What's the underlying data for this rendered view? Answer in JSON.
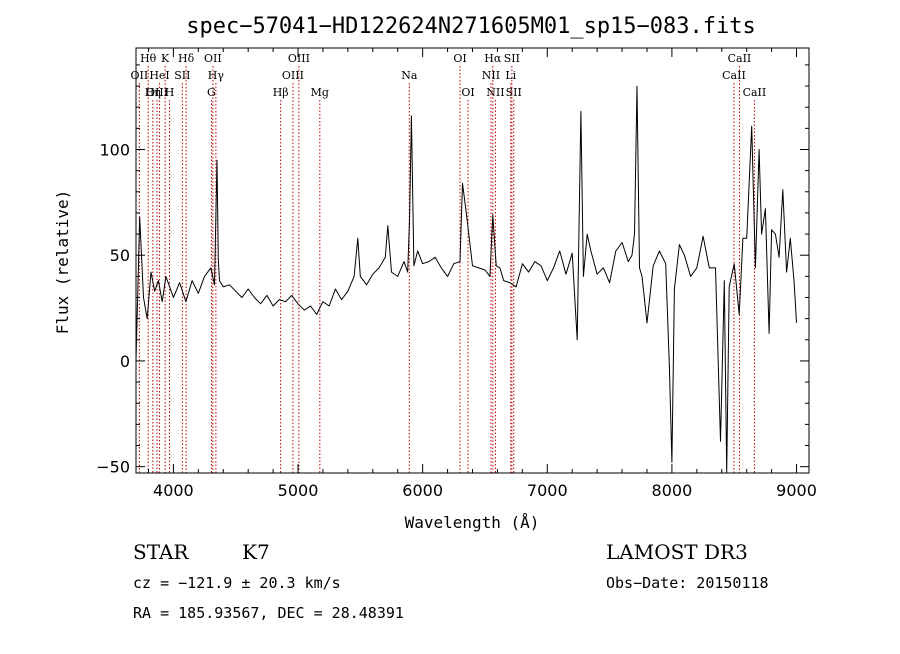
{
  "chart_data": {
    "type": "line",
    "title": "spec−57041−HD122624N271605M01_sp15−083.fits",
    "xlabel": "Wavelength (Å)",
    "ylabel": "Flux (relative)",
    "xlim": [
      3700,
      9100
    ],
    "ylim": [
      -53,
      148
    ],
    "xticks": [
      4000,
      5000,
      6000,
      7000,
      8000,
      9000
    ],
    "yticks": [
      -50,
      0,
      50,
      100
    ],
    "grid": false,
    "series": [
      {
        "color": "#000000",
        "x": [
          3700,
          3730,
          3760,
          3790,
          3820,
          3850,
          3880,
          3910,
          3940,
          3970,
          4000,
          4050,
          4100,
          4150,
          4200,
          4250,
          4300,
          4330,
          4350,
          4360,
          4370,
          4400,
          4450,
          4500,
          4550,
          4600,
          4650,
          4700,
          4750,
          4800,
          4850,
          4900,
          4950,
          5000,
          5050,
          5100,
          5150,
          5200,
          5250,
          5300,
          5350,
          5400,
          5450,
          5480,
          5500,
          5550,
          5600,
          5650,
          5700,
          5720,
          5750,
          5800,
          5850,
          5880,
          5895,
          5910,
          5930,
          5960,
          6000,
          6050,
          6100,
          6150,
          6200,
          6250,
          6300,
          6320,
          6350,
          6400,
          6450,
          6500,
          6540,
          6563,
          6590,
          6620,
          6650,
          6700,
          6750,
          6800,
          6850,
          6900,
          6950,
          7000,
          7050,
          7100,
          7150,
          7200,
          7240,
          7270,
          7290,
          7320,
          7350,
          7400,
          7450,
          7500,
          7550,
          7600,
          7650,
          7680,
          7700,
          7720,
          7740,
          7760,
          7800,
          7850,
          7900,
          7950,
          7980,
          8000,
          8020,
          8060,
          8100,
          8150,
          8200,
          8250,
          8300,
          8350,
          8390,
          8420,
          8440,
          8460,
          8500,
          8540,
          8570,
          8600,
          8640,
          8670,
          8700,
          8720,
          8750,
          8780,
          8800,
          8830,
          8860,
          8890,
          8920,
          8950,
          8980,
          9000
        ],
        "y": [
          0,
          68,
          30,
          20,
          42,
          33,
          38,
          28,
          40,
          35,
          30,
          37,
          28,
          38,
          32,
          40,
          44,
          36,
          95,
          48,
          38,
          35,
          36,
          33,
          30,
          34,
          30,
          27,
          31,
          26,
          29,
          28,
          31,
          27,
          24,
          26,
          22,
          28,
          26,
          34,
          29,
          33,
          40,
          58,
          40,
          36,
          41,
          44,
          49,
          64,
          42,
          40,
          47,
          42,
          68,
          116,
          45,
          52,
          46,
          47,
          49,
          44,
          40,
          46,
          47,
          84,
          70,
          45,
          44,
          43,
          40,
          69,
          45,
          44,
          38,
          37,
          35,
          46,
          42,
          47,
          45,
          38,
          44,
          52,
          41,
          51,
          10,
          118,
          40,
          60,
          52,
          41,
          44,
          37,
          52,
          56,
          47,
          50,
          60,
          130,
          44,
          40,
          18,
          45,
          52,
          46,
          -3,
          -48,
          34,
          55,
          50,
          40,
          44,
          59,
          44,
          44,
          -38,
          38,
          -53,
          35,
          46,
          22,
          58,
          58,
          111,
          44,
          100,
          60,
          72,
          13,
          62,
          60,
          49,
          81,
          42,
          58,
          38,
          18
        ]
      }
    ],
    "emission_lines": [
      {
        "label": "Hθ",
        "x": 3798,
        "row": 1
      },
      {
        "label": "OII",
        "x": 3727,
        "row": 2
      },
      {
        "label": "OIII",
        "x": 3869,
        "row": 3
      },
      {
        "label": "HeI",
        "x": 3889,
        "row": 2
      },
      {
        "label": "Hη",
        "x": 3835,
        "row": 3
      },
      {
        "label": "K",
        "x": 3934,
        "row": 1
      },
      {
        "label": "H",
        "x": 3969,
        "row": 3
      },
      {
        "label": "SII",
        "x": 4072,
        "row": 2
      },
      {
        "label": "Hδ",
        "x": 4102,
        "row": 1
      },
      {
        "label": "OII",
        "x": 4317,
        "row": 1
      },
      {
        "label": "Hγ",
        "x": 4341,
        "row": 2
      },
      {
        "label": "G",
        "x": 4305,
        "row": 3
      },
      {
        "label": "Hβ",
        "x": 4861,
        "row": 3
      },
      {
        "label": "OIII",
        "x": 4959,
        "row": 2
      },
      {
        "label": "OIII",
        "x": 5007,
        "row": 1
      },
      {
        "label": "Mg",
        "x": 5175,
        "row": 3
      },
      {
        "label": "Na",
        "x": 5893,
        "row": 2
      },
      {
        "label": "OI",
        "x": 6300,
        "row": 1
      },
      {
        "label": "OI",
        "x": 6364,
        "row": 3
      },
      {
        "label": "Hα",
        "x": 6563,
        "row": 1
      },
      {
        "label": "NII",
        "x": 6548,
        "row": 2
      },
      {
        "label": "NII",
        "x": 6584,
        "row": 3
      },
      {
        "label": "SII",
        "x": 6716,
        "row": 1
      },
      {
        "label": "Li",
        "x": 6707,
        "row": 2
      },
      {
        "label": "SII",
        "x": 6731,
        "row": 3
      },
      {
        "label": "CaII",
        "x": 8542,
        "row": 1
      },
      {
        "label": "CaII",
        "x": 8498,
        "row": 2
      },
      {
        "label": "CaII",
        "x": 8662,
        "row": 3
      }
    ]
  },
  "info": {
    "class_label": "STAR",
    "subclass": "K7",
    "survey": "LAMOST DR3",
    "redshift": "cz = −121.9 ± 20.3 km/s",
    "obs_date": "Obs−Date: 20150118",
    "coords": "RA = 185.93567, DEC =  28.48391"
  }
}
